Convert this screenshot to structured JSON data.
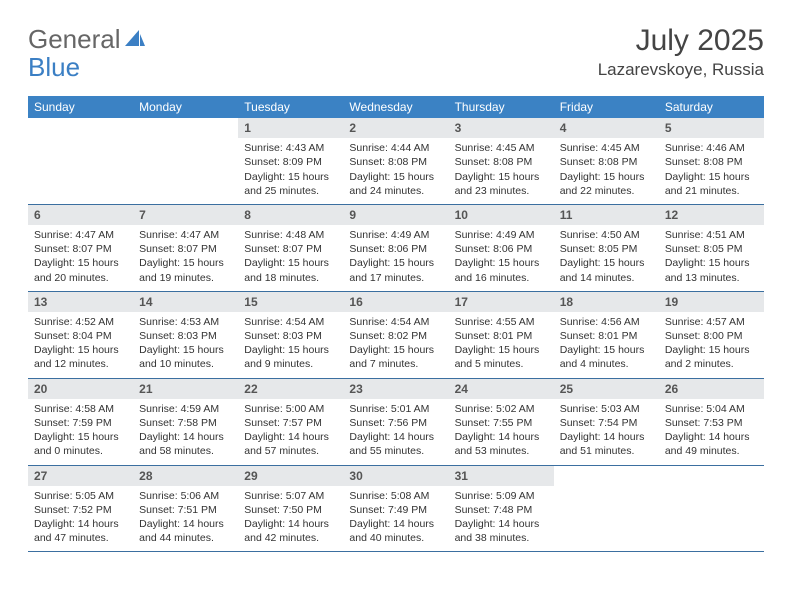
{
  "colors": {
    "header_bar": "#3b82c4",
    "daynum_bg": "#e6e8ea",
    "row_divider": "#3b6fa0",
    "text": "#333333",
    "logo_blue": "#3b7fc4",
    "logo_gray": "#666666"
  },
  "logo": {
    "first": "General",
    "second": "Blue"
  },
  "title": {
    "month": "July 2025",
    "location": "Lazarevskoye, Russia"
  },
  "days_of_week": [
    "Sunday",
    "Monday",
    "Tuesday",
    "Wednesday",
    "Thursday",
    "Friday",
    "Saturday"
  ],
  "weeks": [
    [
      null,
      null,
      {
        "n": "1",
        "sunrise": "Sunrise: 4:43 AM",
        "sunset": "Sunset: 8:09 PM",
        "daylight": "Daylight: 15 hours and 25 minutes."
      },
      {
        "n": "2",
        "sunrise": "Sunrise: 4:44 AM",
        "sunset": "Sunset: 8:08 PM",
        "daylight": "Daylight: 15 hours and 24 minutes."
      },
      {
        "n": "3",
        "sunrise": "Sunrise: 4:45 AM",
        "sunset": "Sunset: 8:08 PM",
        "daylight": "Daylight: 15 hours and 23 minutes."
      },
      {
        "n": "4",
        "sunrise": "Sunrise: 4:45 AM",
        "sunset": "Sunset: 8:08 PM",
        "daylight": "Daylight: 15 hours and 22 minutes."
      },
      {
        "n": "5",
        "sunrise": "Sunrise: 4:46 AM",
        "sunset": "Sunset: 8:08 PM",
        "daylight": "Daylight: 15 hours and 21 minutes."
      }
    ],
    [
      {
        "n": "6",
        "sunrise": "Sunrise: 4:47 AM",
        "sunset": "Sunset: 8:07 PM",
        "daylight": "Daylight: 15 hours and 20 minutes."
      },
      {
        "n": "7",
        "sunrise": "Sunrise: 4:47 AM",
        "sunset": "Sunset: 8:07 PM",
        "daylight": "Daylight: 15 hours and 19 minutes."
      },
      {
        "n": "8",
        "sunrise": "Sunrise: 4:48 AM",
        "sunset": "Sunset: 8:07 PM",
        "daylight": "Daylight: 15 hours and 18 minutes."
      },
      {
        "n": "9",
        "sunrise": "Sunrise: 4:49 AM",
        "sunset": "Sunset: 8:06 PM",
        "daylight": "Daylight: 15 hours and 17 minutes."
      },
      {
        "n": "10",
        "sunrise": "Sunrise: 4:49 AM",
        "sunset": "Sunset: 8:06 PM",
        "daylight": "Daylight: 15 hours and 16 minutes."
      },
      {
        "n": "11",
        "sunrise": "Sunrise: 4:50 AM",
        "sunset": "Sunset: 8:05 PM",
        "daylight": "Daylight: 15 hours and 14 minutes."
      },
      {
        "n": "12",
        "sunrise": "Sunrise: 4:51 AM",
        "sunset": "Sunset: 8:05 PM",
        "daylight": "Daylight: 15 hours and 13 minutes."
      }
    ],
    [
      {
        "n": "13",
        "sunrise": "Sunrise: 4:52 AM",
        "sunset": "Sunset: 8:04 PM",
        "daylight": "Daylight: 15 hours and 12 minutes."
      },
      {
        "n": "14",
        "sunrise": "Sunrise: 4:53 AM",
        "sunset": "Sunset: 8:03 PM",
        "daylight": "Daylight: 15 hours and 10 minutes."
      },
      {
        "n": "15",
        "sunrise": "Sunrise: 4:54 AM",
        "sunset": "Sunset: 8:03 PM",
        "daylight": "Daylight: 15 hours and 9 minutes."
      },
      {
        "n": "16",
        "sunrise": "Sunrise: 4:54 AM",
        "sunset": "Sunset: 8:02 PM",
        "daylight": "Daylight: 15 hours and 7 minutes."
      },
      {
        "n": "17",
        "sunrise": "Sunrise: 4:55 AM",
        "sunset": "Sunset: 8:01 PM",
        "daylight": "Daylight: 15 hours and 5 minutes."
      },
      {
        "n": "18",
        "sunrise": "Sunrise: 4:56 AM",
        "sunset": "Sunset: 8:01 PM",
        "daylight": "Daylight: 15 hours and 4 minutes."
      },
      {
        "n": "19",
        "sunrise": "Sunrise: 4:57 AM",
        "sunset": "Sunset: 8:00 PM",
        "daylight": "Daylight: 15 hours and 2 minutes."
      }
    ],
    [
      {
        "n": "20",
        "sunrise": "Sunrise: 4:58 AM",
        "sunset": "Sunset: 7:59 PM",
        "daylight": "Daylight: 15 hours and 0 minutes."
      },
      {
        "n": "21",
        "sunrise": "Sunrise: 4:59 AM",
        "sunset": "Sunset: 7:58 PM",
        "daylight": "Daylight: 14 hours and 58 minutes."
      },
      {
        "n": "22",
        "sunrise": "Sunrise: 5:00 AM",
        "sunset": "Sunset: 7:57 PM",
        "daylight": "Daylight: 14 hours and 57 minutes."
      },
      {
        "n": "23",
        "sunrise": "Sunrise: 5:01 AM",
        "sunset": "Sunset: 7:56 PM",
        "daylight": "Daylight: 14 hours and 55 minutes."
      },
      {
        "n": "24",
        "sunrise": "Sunrise: 5:02 AM",
        "sunset": "Sunset: 7:55 PM",
        "daylight": "Daylight: 14 hours and 53 minutes."
      },
      {
        "n": "25",
        "sunrise": "Sunrise: 5:03 AM",
        "sunset": "Sunset: 7:54 PM",
        "daylight": "Daylight: 14 hours and 51 minutes."
      },
      {
        "n": "26",
        "sunrise": "Sunrise: 5:04 AM",
        "sunset": "Sunset: 7:53 PM",
        "daylight": "Daylight: 14 hours and 49 minutes."
      }
    ],
    [
      {
        "n": "27",
        "sunrise": "Sunrise: 5:05 AM",
        "sunset": "Sunset: 7:52 PM",
        "daylight": "Daylight: 14 hours and 47 minutes."
      },
      {
        "n": "28",
        "sunrise": "Sunrise: 5:06 AM",
        "sunset": "Sunset: 7:51 PM",
        "daylight": "Daylight: 14 hours and 44 minutes."
      },
      {
        "n": "29",
        "sunrise": "Sunrise: 5:07 AM",
        "sunset": "Sunset: 7:50 PM",
        "daylight": "Daylight: 14 hours and 42 minutes."
      },
      {
        "n": "30",
        "sunrise": "Sunrise: 5:08 AM",
        "sunset": "Sunset: 7:49 PM",
        "daylight": "Daylight: 14 hours and 40 minutes."
      },
      {
        "n": "31",
        "sunrise": "Sunrise: 5:09 AM",
        "sunset": "Sunset: 7:48 PM",
        "daylight": "Daylight: 14 hours and 38 minutes."
      },
      null,
      null
    ]
  ]
}
